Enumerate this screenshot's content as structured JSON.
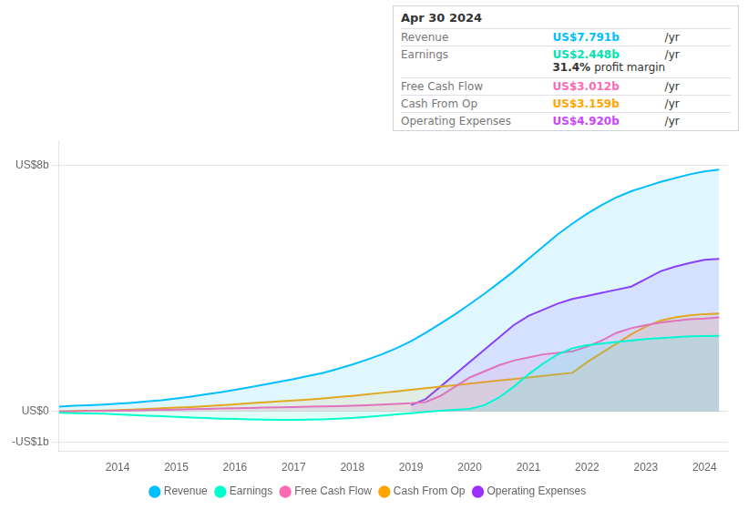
{
  "chart_data": {
    "type": "area",
    "x": [
      2013.0,
      2013.25,
      2013.5,
      2013.75,
      2014.0,
      2014.25,
      2014.5,
      2014.75,
      2015.0,
      2015.25,
      2015.5,
      2015.75,
      2016.0,
      2016.25,
      2016.5,
      2016.75,
      2017.0,
      2017.25,
      2017.5,
      2017.75,
      2018.0,
      2018.25,
      2018.5,
      2018.75,
      2019.0,
      2019.25,
      2019.5,
      2019.75,
      2020.0,
      2020.25,
      2020.5,
      2020.75,
      2021.0,
      2021.25,
      2021.5,
      2021.75,
      2022.0,
      2022.25,
      2022.5,
      2022.75,
      2023.0,
      2023.25,
      2023.5,
      2023.75,
      2024.0,
      2024.25
    ],
    "xlim": [
      2013,
      2024.4
    ],
    "xticks": [
      2014,
      2015,
      2016,
      2017,
      2018,
      2019,
      2020,
      2021,
      2022,
      2023,
      2024
    ],
    "ylim": [
      -1.3,
      8.8
    ],
    "yticks": [
      {
        "value": -1,
        "label": "-US$1b"
      },
      {
        "value": 0,
        "label": "US$0"
      },
      {
        "value": 8,
        "label": "US$8b"
      }
    ],
    "grid": true,
    "legend": "bottom",
    "series": [
      {
        "name": "Revenue",
        "color": "#00bfff",
        "values": [
          0.15,
          0.18,
          0.2,
          0.22,
          0.25,
          0.28,
          0.32,
          0.36,
          0.42,
          0.48,
          0.55,
          0.62,
          0.7,
          0.78,
          0.87,
          0.96,
          1.05,
          1.15,
          1.25,
          1.38,
          1.52,
          1.68,
          1.85,
          2.05,
          2.28,
          2.55,
          2.85,
          3.15,
          3.48,
          3.82,
          4.18,
          4.55,
          4.95,
          5.35,
          5.75,
          6.1,
          6.42,
          6.7,
          6.95,
          7.15,
          7.3,
          7.45,
          7.58,
          7.7,
          7.791,
          7.85
        ]
      },
      {
        "name": "Earnings",
        "color": "#00ffcc",
        "values": [
          -0.05,
          -0.06,
          -0.07,
          -0.08,
          -0.1,
          -0.12,
          -0.14,
          -0.16,
          -0.18,
          -0.2,
          -0.22,
          -0.24,
          -0.25,
          -0.26,
          -0.27,
          -0.28,
          -0.28,
          -0.27,
          -0.26,
          -0.24,
          -0.22,
          -0.18,
          -0.14,
          -0.1,
          -0.06,
          -0.02,
          0.02,
          0.05,
          0.08,
          0.2,
          0.45,
          0.8,
          1.2,
          1.55,
          1.85,
          2.05,
          2.15,
          2.2,
          2.25,
          2.3,
          2.35,
          2.38,
          2.41,
          2.44,
          2.448,
          2.45
        ]
      },
      {
        "name": "Free Cash Flow",
        "color": "#ff69b4",
        "values": [
          0.0,
          0.0,
          0.01,
          0.01,
          0.02,
          0.03,
          0.04,
          0.05,
          0.06,
          0.07,
          0.08,
          0.09,
          0.1,
          0.11,
          0.12,
          0.13,
          0.14,
          0.15,
          0.16,
          0.17,
          0.18,
          0.2,
          0.22,
          0.24,
          0.26,
          0.3,
          0.5,
          0.8,
          1.1,
          1.3,
          1.5,
          1.65,
          1.75,
          1.85,
          1.9,
          1.95,
          2.1,
          2.3,
          2.55,
          2.7,
          2.8,
          2.88,
          2.94,
          2.99,
          3.012,
          3.05
        ]
      },
      {
        "name": "Cash From Op",
        "color": "#ffa500",
        "values": [
          0.0,
          0.01,
          0.02,
          0.03,
          0.04,
          0.06,
          0.08,
          0.1,
          0.12,
          0.14,
          0.17,
          0.2,
          0.23,
          0.26,
          0.29,
          0.32,
          0.35,
          0.38,
          0.42,
          0.46,
          0.5,
          0.55,
          0.6,
          0.65,
          0.7,
          0.75,
          0.8,
          0.85,
          0.9,
          0.95,
          1.0,
          1.05,
          1.1,
          1.15,
          1.2,
          1.25,
          1.6,
          1.9,
          2.2,
          2.5,
          2.75,
          2.95,
          3.05,
          3.12,
          3.159,
          3.18
        ]
      },
      {
        "name": "Operating Expenses",
        "color": "#9b30ff",
        "values": [
          null,
          null,
          null,
          null,
          null,
          null,
          null,
          null,
          null,
          null,
          null,
          null,
          null,
          null,
          null,
          null,
          null,
          null,
          null,
          null,
          null,
          null,
          null,
          null,
          0.2,
          0.4,
          0.8,
          1.2,
          1.6,
          2.0,
          2.4,
          2.8,
          3.1,
          3.3,
          3.5,
          3.65,
          3.75,
          3.85,
          3.95,
          4.05,
          4.3,
          4.55,
          4.7,
          4.82,
          4.92,
          4.95
        ]
      }
    ],
    "annotations": {
      "header": "Apr 30 2024",
      "rows": [
        {
          "label": "Revenue",
          "value": "US$7.791b",
          "unit": "/yr",
          "color": "#00bfff"
        },
        {
          "label": "Earnings",
          "value": "US$2.448b",
          "unit": "/yr",
          "color": "#00e5b0",
          "extra": {
            "value": "31.4%",
            "label": "profit margin"
          }
        },
        {
          "label": "Free Cash Flow",
          "value": "US$3.012b",
          "unit": "/yr",
          "color": "#ff69b4"
        },
        {
          "label": "Cash From Op",
          "value": "US$3.159b",
          "unit": "/yr",
          "color": "#ffa500"
        },
        {
          "label": "Operating Expenses",
          "value": "US$4.920b",
          "unit": "/yr",
          "color": "#cc44ff"
        }
      ]
    }
  }
}
